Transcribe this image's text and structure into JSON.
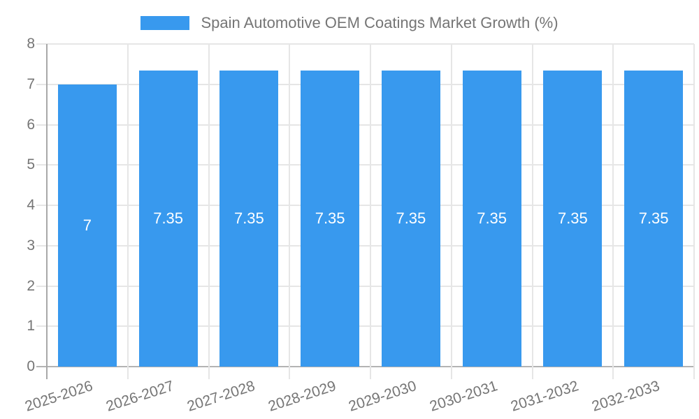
{
  "chart_data": {
    "type": "bar",
    "title": "Spain Automotive OEM Coatings Market Growth (%)",
    "categories": [
      "2025-2026",
      "2026-2027",
      "2027-2028",
      "2028-2029",
      "2029-2030",
      "2030-2031",
      "2031-2032",
      "2032-2033"
    ],
    "values": [
      7,
      7.35,
      7.35,
      7.35,
      7.35,
      7.35,
      7.35,
      7.35
    ],
    "bar_labels": [
      "7",
      "7.35",
      "7.35",
      "7.35",
      "7.35",
      "7.35",
      "7.35",
      "7.35"
    ],
    "xlabel": "",
    "ylabel": "",
    "ylim": [
      0,
      8
    ],
    "y_ticks": [
      0,
      1,
      2,
      3,
      4,
      5,
      6,
      7,
      8
    ],
    "grid": true,
    "legend_position": "top",
    "colors": {
      "bar": "#3899EE",
      "bar_label": "#FFFFFF",
      "axis_text": "#757575",
      "grid_line": "#E6E6E6",
      "y_axis_line": "#A8A8A8",
      "x_axis_line": "#B3B3B3",
      "background": "#FFFFFF"
    }
  }
}
